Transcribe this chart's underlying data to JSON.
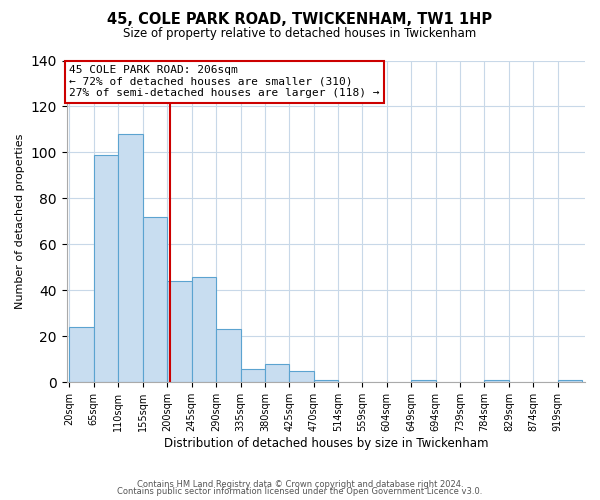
{
  "title": "45, COLE PARK ROAD, TWICKENHAM, TW1 1HP",
  "subtitle": "Size of property relative to detached houses in Twickenham",
  "xlabel": "Distribution of detached houses by size in Twickenham",
  "ylabel": "Number of detached properties",
  "footer_lines": [
    "Contains HM Land Registry data © Crown copyright and database right 2024.",
    "Contains public sector information licensed under the Open Government Licence v3.0."
  ],
  "bin_labels": [
    "20sqm",
    "65sqm",
    "110sqm",
    "155sqm",
    "200sqm",
    "245sqm",
    "290sqm",
    "335sqm",
    "380sqm",
    "425sqm",
    "470sqm",
    "514sqm",
    "559sqm",
    "604sqm",
    "649sqm",
    "694sqm",
    "739sqm",
    "784sqm",
    "829sqm",
    "874sqm",
    "919sqm"
  ],
  "bar_values": [
    24,
    99,
    108,
    72,
    44,
    46,
    23,
    6,
    8,
    5,
    1,
    0,
    0,
    0,
    1,
    0,
    0,
    1,
    0,
    0,
    1
  ],
  "bar_color": "#c8ddf0",
  "bar_edgecolor": "#5ba3d0",
  "bin_width": 45,
  "bin_starts": [
    20,
    65,
    110,
    155,
    200,
    245,
    290,
    335,
    380,
    425,
    470,
    514,
    559,
    604,
    649,
    694,
    739,
    784,
    829,
    874,
    919
  ],
  "property_size": 206,
  "vline_color": "#cc0000",
  "annotation_text": "45 COLE PARK ROAD: 206sqm\n← 72% of detached houses are smaller (310)\n27% of semi-detached houses are larger (118) →",
  "annotation_box_color": "#ffffff",
  "annotation_box_edgecolor": "#cc0000",
  "ylim": [
    0,
    140
  ],
  "yticks": [
    0,
    20,
    40,
    60,
    80,
    100,
    120,
    140
  ],
  "background_color": "#ffffff",
  "grid_color": "#c8d8e8"
}
